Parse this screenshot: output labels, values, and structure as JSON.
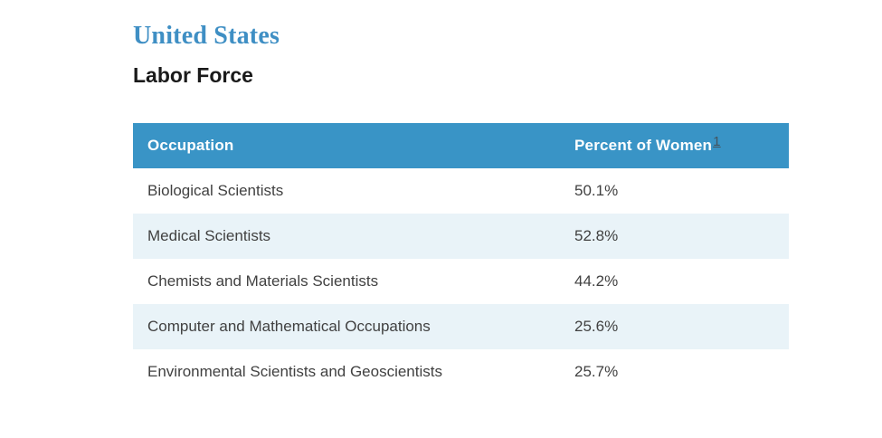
{
  "page": {
    "title": "United States",
    "subtitle": "Labor Force"
  },
  "table": {
    "columns": {
      "occupation": "Occupation",
      "percent": "Percent of Women"
    },
    "footnote_marker": "1",
    "rows": [
      {
        "occupation": "Biological Scientists",
        "percent": "50.1%"
      },
      {
        "occupation": "Medical Scientists",
        "percent": "52.8%"
      },
      {
        "occupation": "Chemists and Materials Scientists",
        "percent": "44.2%"
      },
      {
        "occupation": "Computer and Mathematical Occupations",
        "percent": "25.6%"
      },
      {
        "occupation": "Environmental Scientists and Geoscientists",
        "percent": "25.7%"
      }
    ]
  },
  "colors": {
    "header_bg": "#3994c6",
    "row_alt_bg": "#e9f3f8",
    "title_blue": "#3f8fc4",
    "subtitle_dark": "#1a1a1a",
    "body_text": "#414141",
    "header_text": "#ffffff",
    "footnote_link": "#44545e"
  }
}
